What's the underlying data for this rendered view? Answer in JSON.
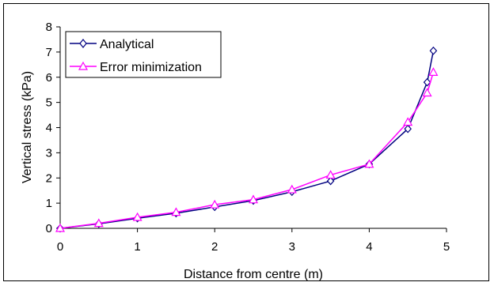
{
  "chart_data": {
    "type": "line",
    "title": "",
    "xlabel": "Distance from centre (m)",
    "ylabel": "Vertical stress (kPa)",
    "xlim": [
      0,
      5
    ],
    "ylim": [
      0,
      8
    ],
    "xticks": [
      "0",
      "1",
      "2",
      "3",
      "4",
      "5"
    ],
    "yticks": [
      "0",
      "1",
      "2",
      "3",
      "4",
      "5",
      "6",
      "7",
      "8"
    ],
    "grid": false,
    "legend_position": "top-left",
    "series": [
      {
        "name": "Analytical",
        "color": "#000080",
        "marker": "diamond",
        "x": [
          0,
          0.5,
          1.0,
          1.5,
          2.0,
          2.5,
          3.0,
          3.5,
          4.0,
          4.5,
          4.75,
          4.83
        ],
        "y": [
          0.0,
          0.18,
          0.4,
          0.6,
          0.85,
          1.1,
          1.45,
          1.88,
          2.55,
          3.95,
          5.8,
          7.05
        ]
      },
      {
        "name": "Error minimization",
        "color": "#ff00ff",
        "marker": "triangle",
        "x": [
          0,
          0.5,
          1.0,
          1.5,
          2.0,
          2.5,
          3.0,
          3.5,
          4.0,
          4.5,
          4.75,
          4.83
        ],
        "y": [
          0.0,
          0.2,
          0.44,
          0.64,
          0.94,
          1.14,
          1.54,
          2.12,
          2.55,
          4.22,
          5.38,
          6.2
        ]
      }
    ]
  }
}
